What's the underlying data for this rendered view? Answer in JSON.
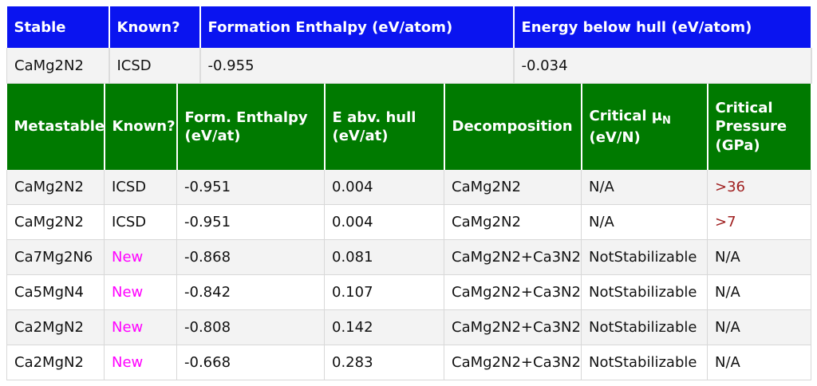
{
  "stable": {
    "headers": [
      "Stable",
      "Known?",
      "Formation Enthalpy (eV/atom)",
      "Energy below hull (eV/atom)"
    ],
    "row": [
      "CaMg2N2",
      "ICSD",
      "-0.955",
      "-0.034"
    ]
  },
  "metastable": {
    "headers": {
      "name": "Metastable",
      "known": "Known?",
      "enthalpy_line1": "Form. Enthalpy",
      "enthalpy_line2": "(eV/at)",
      "hull_line1": "E abv. hull",
      "hull_line2": "(eV/at)",
      "decomposition": "Decomposition",
      "mu_line1": "Critical μ",
      "mu_sub": "N",
      "mu_line2": "(eV/N)",
      "pressure_line1": "Critical",
      "pressure_line2": "Pressure",
      "pressure_line3": "(GPa)"
    },
    "rows": [
      [
        "CaMg2N2",
        "ICSD",
        "-0.951",
        "0.004",
        "CaMg2N2",
        "N/A",
        ">36"
      ],
      [
        "CaMg2N2",
        "ICSD",
        "-0.951",
        "0.004",
        "CaMg2N2",
        "N/A",
        ">7"
      ],
      [
        "Ca7Mg2N6",
        "New",
        "-0.868",
        "0.081",
        "CaMg2N2+Ca3N2",
        "NotStabilizable",
        "N/A"
      ],
      [
        "Ca5MgN4",
        "New",
        "-0.842",
        "0.107",
        "CaMg2N2+Ca3N2",
        "NotStabilizable",
        "N/A"
      ],
      [
        "Ca2MgN2",
        "New",
        "-0.808",
        "0.142",
        "CaMg2N2+Ca3N2",
        "NotStabilizable",
        "N/A"
      ],
      [
        "Ca2MgN2",
        "New",
        "-0.668",
        "0.283",
        "CaMg2N2+Ca3N2",
        "NotStabilizable",
        "N/A"
      ]
    ]
  },
  "colors": {
    "stable_header": "#0a14f0",
    "metastable_header": "#007a00",
    "new_text": "#ff00ff",
    "pressure_text": "#a02020"
  }
}
